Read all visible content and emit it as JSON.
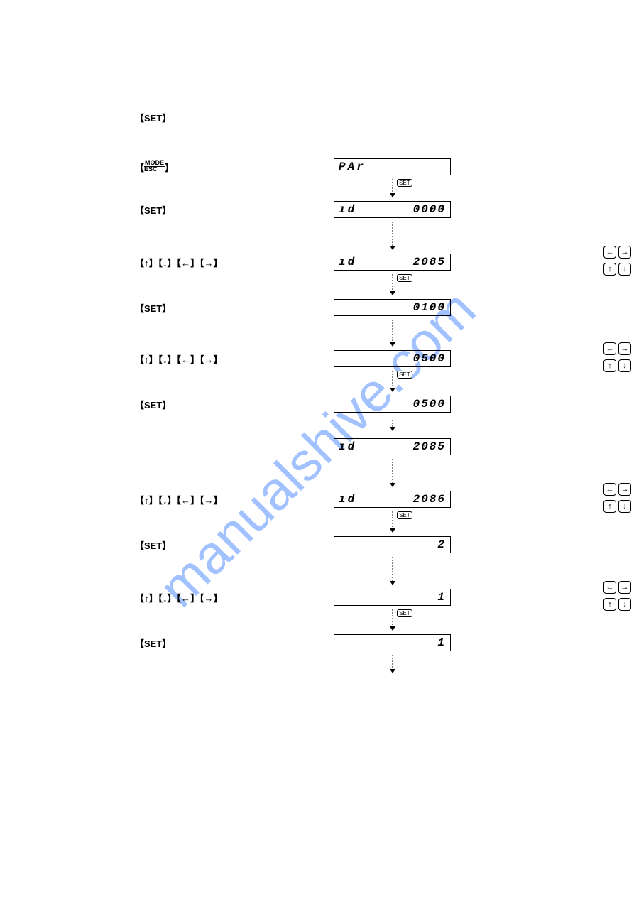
{
  "watermark": "manualshive.com",
  "bottom_rule_color": "#000000",
  "steps": [
    {
      "type": "label",
      "label": "【SET】",
      "gap_after": 40
    },
    {
      "type": "label_display",
      "label_mode_esc": true,
      "display_left": "PAr",
      "display_right": ""
    },
    {
      "type": "arrow",
      "with_set": true,
      "height": 26
    },
    {
      "type": "label_display",
      "label": "【SET】",
      "display_left": "ıd",
      "display_right": "0000"
    },
    {
      "type": "arrow",
      "with_set": false,
      "height": 40
    },
    {
      "type": "label_display",
      "label": "【↑】【↓】【←】【→】",
      "display_left": "ıd",
      "display_right": "2085",
      "nav": true
    },
    {
      "type": "arrow",
      "with_set": true,
      "height": 30
    },
    {
      "type": "label_display",
      "label": "【SET】",
      "display_left": "",
      "display_right": "0100"
    },
    {
      "type": "arrow",
      "with_set": false,
      "height": 38
    },
    {
      "type": "label_display",
      "label": "【↑】【↓】【←】【→】",
      "display_left": "",
      "display_right": "0500",
      "nav": true
    },
    {
      "type": "arrow",
      "with_set": true,
      "height": 30
    },
    {
      "type": "label_display",
      "label": "【SET】",
      "display_left": "",
      "display_right": "0500"
    },
    {
      "type": "arrow",
      "with_set": false,
      "height": 16
    },
    {
      "type": "display_only",
      "display_left": "ıd",
      "display_right": "2085"
    },
    {
      "type": "arrow",
      "with_set": false,
      "height": 40
    },
    {
      "type": "label_display",
      "label": "【↑】【↓】【←】【→】",
      "display_left": "ıd",
      "display_right": "2086",
      "nav": true
    },
    {
      "type": "arrow",
      "with_set": true,
      "height": 30
    },
    {
      "type": "label_display",
      "label": "【SET】",
      "display_left": "",
      "display_right": "2"
    },
    {
      "type": "arrow",
      "with_set": false,
      "height": 40
    },
    {
      "type": "label_display",
      "label": "【↑】【↓】【←】【→】",
      "display_left": "",
      "display_right": "1",
      "nav": true
    },
    {
      "type": "arrow",
      "with_set": true,
      "height": 30
    },
    {
      "type": "label_display",
      "label": "【SET】",
      "display_left": "",
      "display_right": "1"
    },
    {
      "type": "arrow",
      "with_set": false,
      "height": 26
    }
  ],
  "nav_buttons": {
    "top_pair": [
      "←",
      "→"
    ],
    "bottom_pair": [
      "↑",
      "↓"
    ]
  },
  "set_tag_text": "SET"
}
